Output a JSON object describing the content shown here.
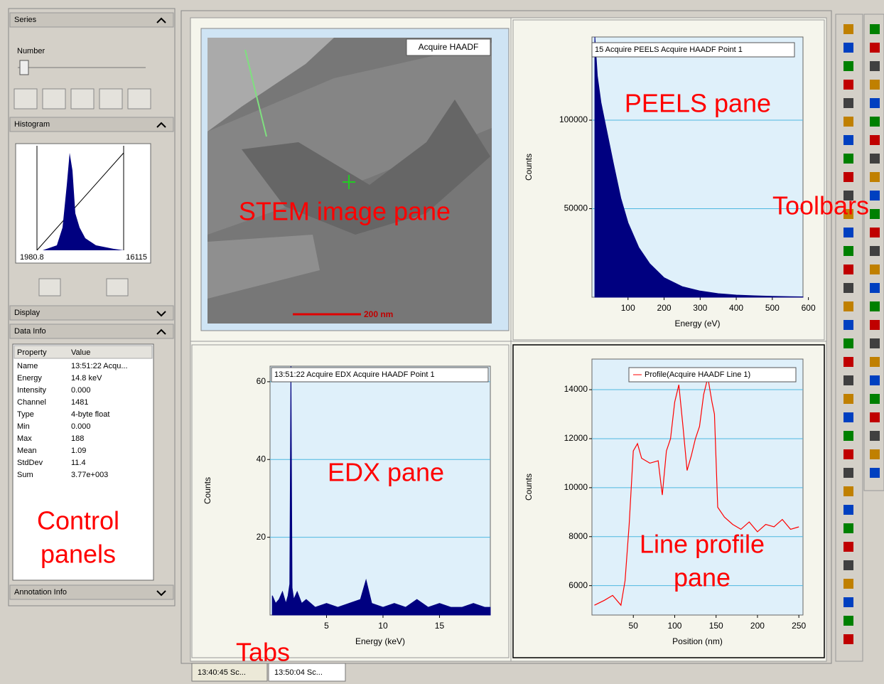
{
  "left_panel": {
    "series": {
      "title": "Series",
      "slider_label": "Number"
    },
    "histogram": {
      "title": "Histogram",
      "min_label": "1980.8",
      "max_label": "16115"
    },
    "display": {
      "title": "Display"
    },
    "data_info": {
      "title": "Data Info",
      "columns": [
        "Property",
        "Value"
      ],
      "rows": [
        [
          "Name",
          "13:51:22 Acqu..."
        ],
        [
          "Energy",
          "14.8 keV"
        ],
        [
          "Intensity",
          "0.000"
        ],
        [
          "Channel",
          "1481"
        ],
        [
          "Type",
          "4-byte float"
        ],
        [
          "Min",
          "0.000"
        ],
        [
          "Max",
          "188"
        ],
        [
          "Mean",
          "1.09"
        ],
        [
          "StdDev",
          "11.4"
        ],
        [
          "Sum",
          "3.77e+003"
        ]
      ]
    },
    "annotation_info": {
      "title": "Annotation Info"
    }
  },
  "panes": {
    "stem": {
      "caption": "Acquire HAADF",
      "scale_bar": "200 nm"
    },
    "peels": {
      "type": "area",
      "legend": "15 Acquire PEELS Acquire HAADF Point 1",
      "x_label": "Energy (eV)",
      "y_label": "Counts",
      "color": "#000080",
      "grid": true,
      "xlim": [
        0,
        585
      ],
      "xticks": [
        100,
        200,
        300,
        400,
        500,
        600
      ],
      "ylim": [
        0,
        147000
      ],
      "yticks": [
        50000,
        100000
      ],
      "x": [
        8,
        15,
        25,
        40,
        60,
        80,
        100,
        130,
        160,
        200,
        250,
        300,
        350,
        400,
        450,
        500,
        550,
        585
      ],
      "values": [
        147000,
        125000,
        110000,
        95000,
        75000,
        56000,
        42000,
        28000,
        19000,
        11000,
        6000,
        3500,
        2000,
        1200,
        800,
        500,
        300,
        200
      ]
    },
    "edx": {
      "type": "area",
      "legend": "13:51:22 Acquire EDX Acquire HAADF Point 1",
      "x_label": "Energy (keV)",
      "y_label": "Counts",
      "color": "#000080",
      "grid": true,
      "xlim": [
        0,
        19.5
      ],
      "xticks": [
        5,
        10,
        15
      ],
      "ylim": [
        0,
        64
      ],
      "yticks": [
        20,
        40,
        60
      ],
      "x": [
        0.2,
        0.5,
        0.8,
        1.1,
        1.4,
        1.6,
        1.75,
        1.85,
        1.95,
        2.1,
        2.4,
        2.8,
        3.2,
        3.6,
        4,
        5,
        6,
        7,
        8,
        8.5,
        9,
        10,
        11,
        12,
        13,
        14,
        15,
        16,
        17,
        18,
        19,
        19.5
      ],
      "values": [
        5,
        3,
        4,
        6,
        3,
        5,
        8,
        64,
        7,
        4,
        6,
        3,
        4,
        3,
        2,
        3,
        2,
        3,
        4,
        9,
        3,
        2,
        3,
        2,
        4,
        2,
        3,
        2,
        2,
        3,
        2,
        2
      ]
    },
    "profile": {
      "type": "line",
      "legend": "Profile(Acquire HAADF Line 1)",
      "x_label": "Position (nm)",
      "y_label": "Counts",
      "color": "#ff0000",
      "grid": true,
      "xlim": [
        0,
        255
      ],
      "xticks": [
        50,
        100,
        150,
        200,
        250
      ],
      "ylim": [
        4800,
        15250
      ],
      "yticks": [
        6000,
        8000,
        10000,
        12000,
        14000
      ],
      "x": [
        3,
        15,
        25,
        35,
        40,
        45,
        50,
        55,
        60,
        70,
        80,
        85,
        90,
        95,
        100,
        105,
        110,
        115,
        120,
        125,
        130,
        135,
        140,
        145,
        148,
        152,
        160,
        170,
        180,
        190,
        200,
        210,
        220,
        230,
        240,
        250
      ],
      "values": [
        5200,
        5400,
        5600,
        5200,
        6200,
        8500,
        11500,
        11800,
        11200,
        11000,
        11100,
        9700,
        11500,
        12000,
        13500,
        14200,
        12500,
        10700,
        11300,
        12000,
        12500,
        13800,
        14500,
        13500,
        13000,
        9200,
        8800,
        8500,
        8300,
        8600,
        8200,
        8500,
        8400,
        8700,
        8300,
        8400
      ]
    }
  },
  "annotations": {
    "stem": "STEM image pane",
    "peels": "PEELS pane",
    "toolbars": "Toolbars",
    "edx": "EDX pane",
    "profile": [
      "Line profile",
      "pane"
    ],
    "control_panels": [
      "Control",
      "panels"
    ],
    "tabs": "Tabs"
  },
  "tabs": [
    "13:40:45 Sc...",
    "13:50:04 Sc..."
  ]
}
